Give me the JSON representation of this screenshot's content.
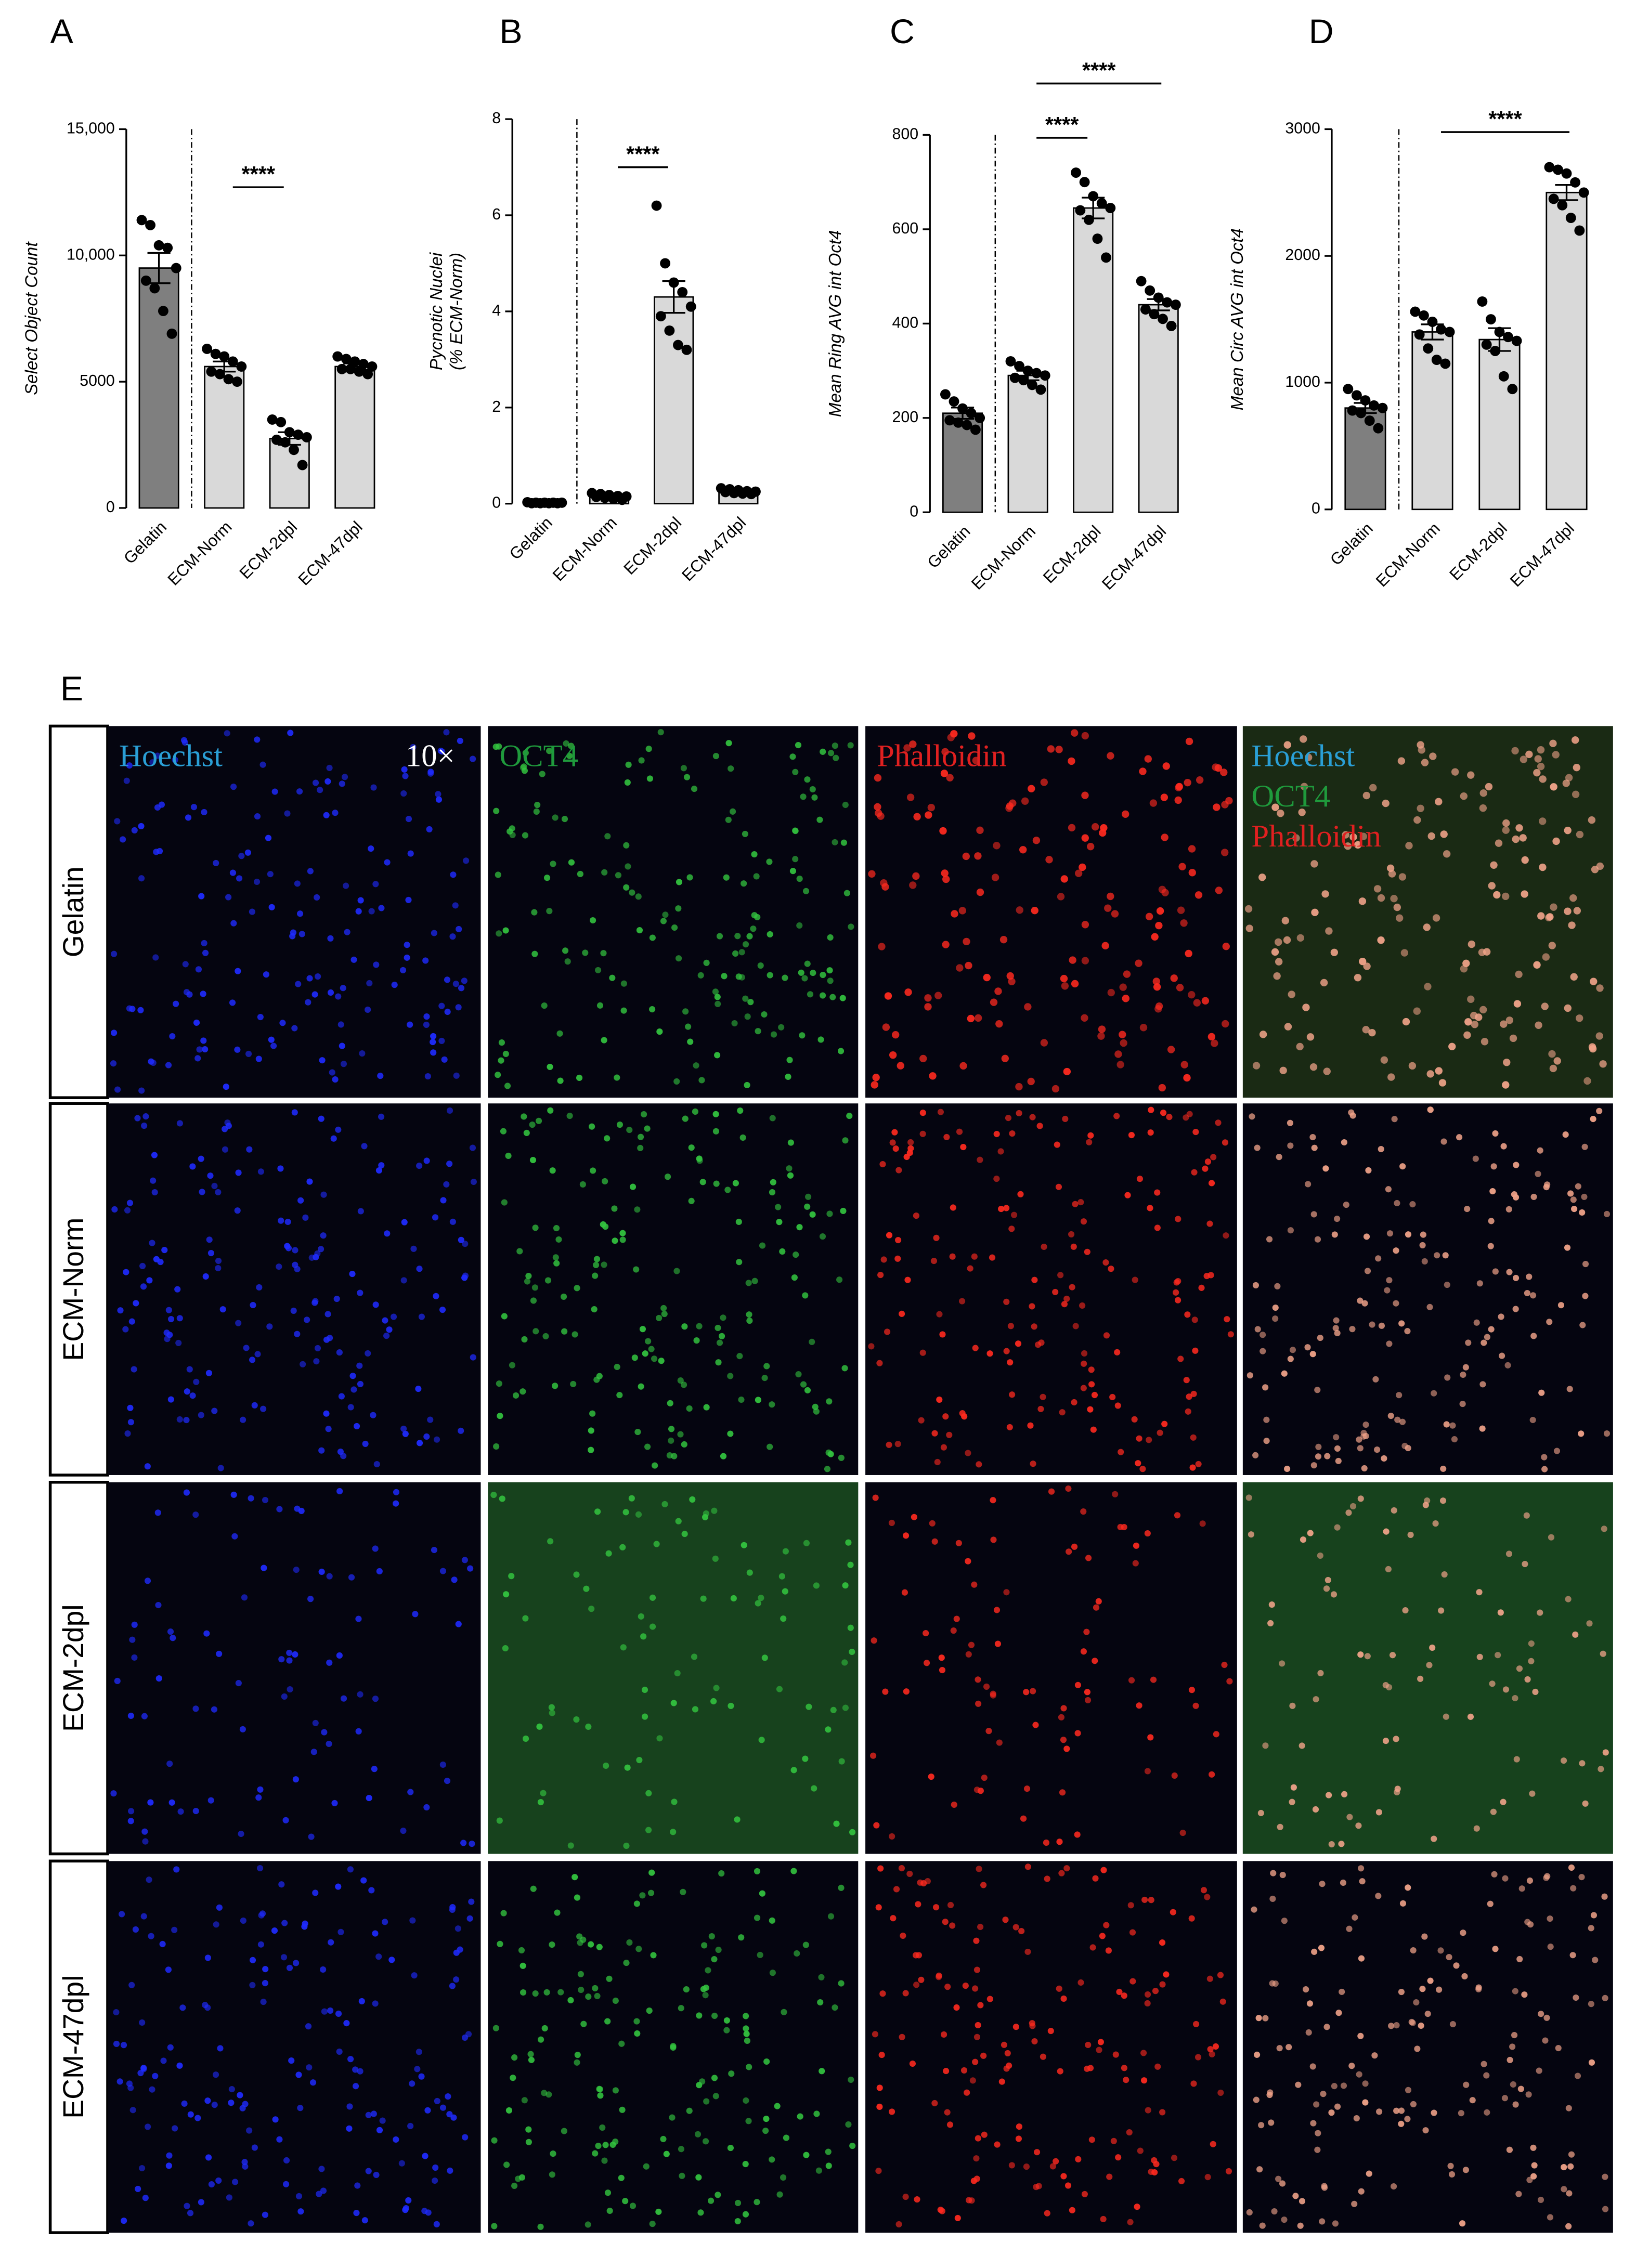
{
  "chart_data": [
    {
      "type": "bar",
      "panel": "A",
      "ylabel": [
        "Select Object Count"
      ],
      "categories": [
        "Gelatin",
        "ECM-Norm",
        "ECM-2dpl",
        "ECM-47dpl"
      ],
      "values": [
        9500,
        5600,
        2750,
        5600
      ],
      "errors": [
        600,
        200,
        250,
        120
      ],
      "points": [
        [
          11400,
          11200,
          10400,
          10300,
          9500,
          9000,
          8700,
          7800,
          6900
        ],
        [
          6300,
          6100,
          6000,
          5800,
          5600,
          5400,
          5300,
          5100,
          5000
        ],
        [
          3500,
          3400,
          3000,
          2900,
          2800,
          2700,
          2600,
          2300,
          1700
        ],
        [
          6000,
          5900,
          5800,
          5700,
          5600,
          5500,
          5500,
          5400,
          5300
        ]
      ],
      "colors": [
        "#7f7f7f",
        "#d9d9d9",
        "#d9d9d9",
        "#d9d9d9"
      ],
      "ylim": [
        0,
        15000
      ],
      "yticks": [
        0,
        5000,
        {
          "value": 10000,
          "label": "10,000"
        },
        {
          "value": 15000,
          "label": "15,000"
        }
      ],
      "significance": [
        {
          "label": "****",
          "between": [
            "ECM-Norm",
            "ECM-2dpl"
          ],
          "y": 12700
        }
      ]
    },
    {
      "type": "bar",
      "panel": "B",
      "ylabel": [
        "Pycnotic Nuclei",
        "(% ECM-Norm)"
      ],
      "categories": [
        "Gelatin",
        "ECM-Norm",
        "ECM-2dpl",
        "ECM-47dpl"
      ],
      "values": [
        0.02,
        0.15,
        4.3,
        0.25
      ],
      "errors": [
        0.01,
        0.02,
        0.33,
        0.02
      ],
      "points": [
        [
          0.03,
          0.02,
          0.02,
          0.02,
          0.02,
          0.01,
          0.01,
          0.01,
          0.01
        ],
        [
          0.22,
          0.2,
          0.18,
          0.16,
          0.15,
          0.14,
          0.12,
          0.1,
          0.08
        ],
        [
          6.2,
          5.0,
          4.6,
          4.4,
          4.1,
          3.9,
          3.6,
          3.3,
          3.2
        ],
        [
          0.32,
          0.3,
          0.28,
          0.26,
          0.25,
          0.24,
          0.22,
          0.21,
          0.2
        ]
      ],
      "colors": [
        "#7f7f7f",
        "#d9d9d9",
        "#d9d9d9",
        "#d9d9d9"
      ],
      "ylim": [
        0,
        8
      ],
      "yticks": [
        0,
        2,
        4,
        6,
        8
      ],
      "significance": [
        {
          "label": "****",
          "between": [
            "ECM-Norm",
            "ECM-2dpl"
          ],
          "y": 7
        }
      ]
    },
    {
      "type": "bar",
      "panel": "C",
      "ylabel": [
        "Mean Ring AVG int Oct4"
      ],
      "categories": [
        "Gelatin",
        "ECM-Norm",
        "ECM-2dpl",
        "ECM-47dpl"
      ],
      "values": [
        210,
        290,
        645,
        440
      ],
      "errors": [
        12,
        10,
        22,
        12
      ],
      "points": [
        [
          250,
          235,
          220,
          210,
          200,
          195,
          190,
          185,
          175
        ],
        [
          320,
          310,
          300,
          295,
          290,
          285,
          280,
          270,
          260
        ],
        [
          720,
          700,
          670,
          655,
          645,
          640,
          620,
          580,
          540
        ],
        [
          490,
          470,
          455,
          445,
          440,
          430,
          420,
          410,
          395
        ]
      ],
      "colors": [
        "#7f7f7f",
        "#d9d9d9",
        "#d9d9d9",
        "#d9d9d9"
      ],
      "ylim": [
        0,
        800
      ],
      "yticks": [
        0,
        200,
        400,
        600,
        800
      ],
      "significance": [
        {
          "label": "****",
          "between": [
            "ECM-Norm",
            "ECM-2dpl"
          ],
          "y": 794
        },
        {
          "label": "****",
          "between": [
            "ECM-Norm",
            "ECM-47dpl"
          ],
          "y": 909
        }
      ]
    },
    {
      "type": "bar",
      "panel": "D",
      "ylabel": [
        "Mean Circ AVG int Oct4"
      ],
      "categories": [
        "Gelatin",
        "ECM-Norm",
        "ECM-2dpl",
        "ECM-47dpl"
      ],
      "values": [
        800,
        1400,
        1340,
        2500
      ],
      "errors": [
        40,
        60,
        90,
        60
      ],
      "points": [
        [
          950,
          900,
          860,
          820,
          800,
          780,
          760,
          700,
          640
        ],
        [
          1560,
          1530,
          1480,
          1420,
          1400,
          1380,
          1270,
          1180,
          1150
        ],
        [
          1640,
          1500,
          1400,
          1360,
          1330,
          1300,
          1250,
          1050,
          950
        ],
        [
          2700,
          2680,
          2650,
          2580,
          2500,
          2450,
          2400,
          2300,
          2200
        ]
      ],
      "colors": [
        "#7f7f7f",
        "#d9d9d9",
        "#d9d9d9",
        "#d9d9d9"
      ],
      "ylim": [
        0,
        3000
      ],
      "yticks": [
        0,
        1000,
        2000,
        3000
      ],
      "significance": [
        {
          "label": "****",
          "between": [
            "ECM-Norm",
            "ECM-47dpl"
          ],
          "y": 2977
        }
      ]
    }
  ],
  "image_panel": {
    "panel": "E",
    "channels": [
      {
        "name": "Hoechst",
        "color": "#2a9fd6"
      },
      {
        "name": "OCT4",
        "color": "#1f9a3c"
      },
      {
        "name": "Phalloidin",
        "color": "#e02020"
      }
    ],
    "magnification": "10×",
    "rows": [
      "Gelatin",
      "ECM-Norm",
      "ECM-2dpl",
      "ECM-47dpl"
    ]
  }
}
